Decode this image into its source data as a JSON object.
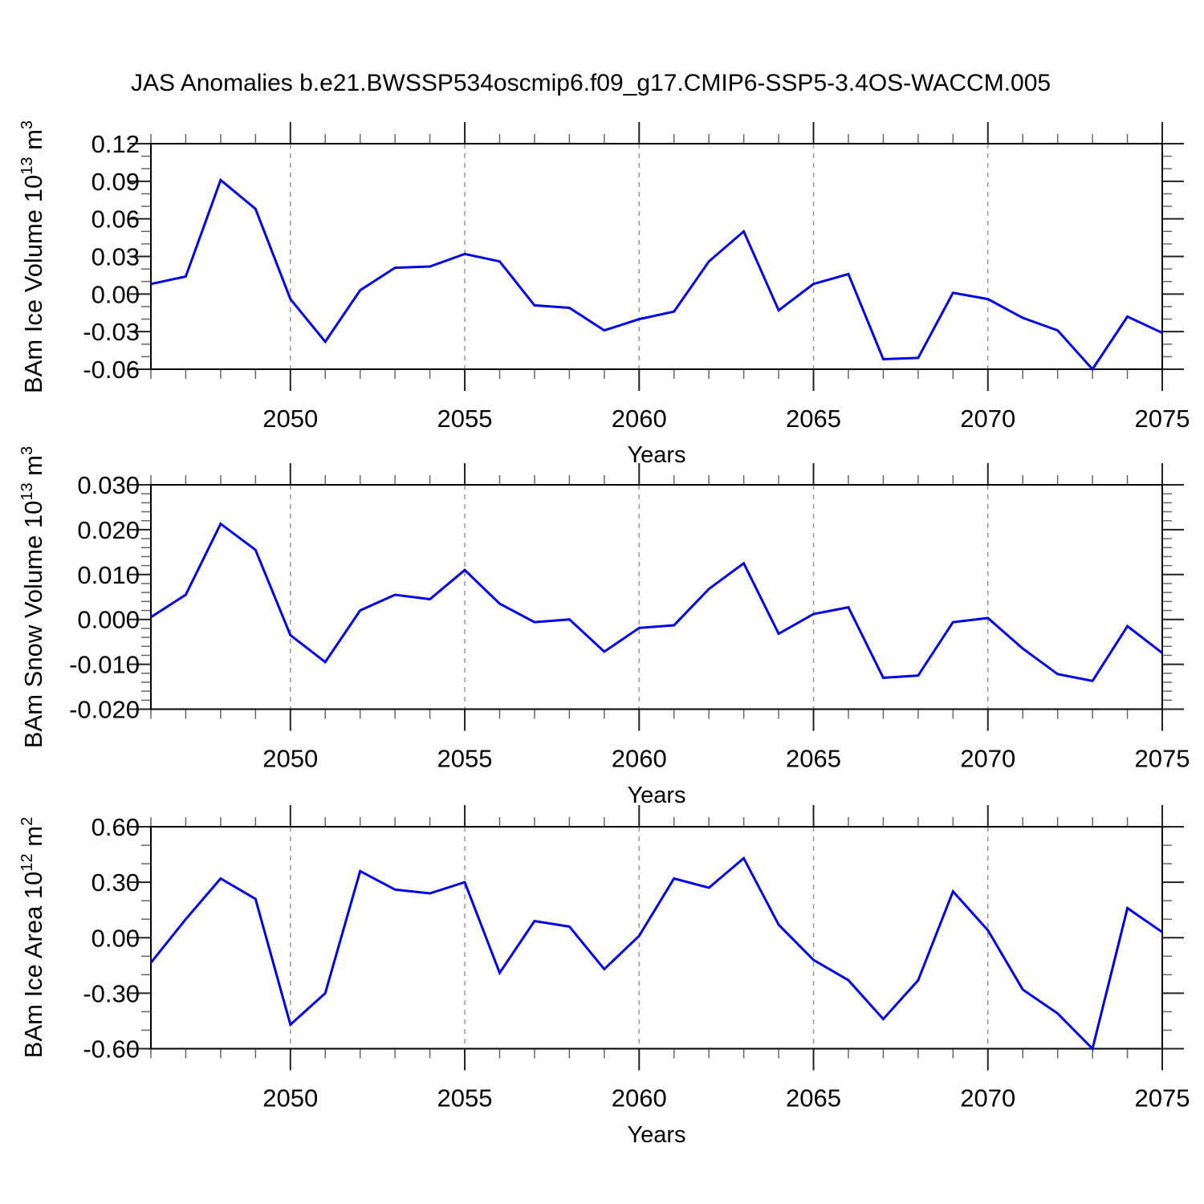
{
  "title": "JAS Anomalies b.e21.BWSSP534oscmip6.f09_g17.CMIP6-SSP5-3.4OS-WACCM.005",
  "xlabel": "Years",
  "colors": {
    "line": "#0000ee",
    "frame": "#000000",
    "grid": "#999999",
    "tick_major": "#222222",
    "tick_minor": "#666666"
  },
  "x_major_ticks": [
    2050,
    2055,
    2060,
    2065,
    2070,
    2075
  ],
  "x_major_tick_labels": [
    "2050",
    "2055",
    "2060",
    "2065",
    "2070",
    "2075"
  ],
  "grid_years": [
    2050,
    2055,
    2060,
    2065,
    2070
  ],
  "chart_data": [
    {
      "type": "line",
      "name": "bam-ice-volume",
      "ylabel_text": "BAm Ice Volume 10^13 m^3",
      "ylabel_parts": [
        {
          "t": "BAm Ice Volume 10"
        },
        {
          "t": "13",
          "sup": true
        },
        {
          "t": " m"
        },
        {
          "t": "3",
          "sup": true
        }
      ],
      "xlabel": "Years",
      "ylim": [
        -0.06,
        0.12
      ],
      "ymajor_step": 0.03,
      "yminor_step": 0.01,
      "ytick_labels": [
        "0.12",
        "0.09",
        "0.06",
        "0.03",
        "0.00",
        "-0.03",
        "-0.06"
      ],
      "x": [
        2046,
        2047,
        2048,
        2049,
        2050,
        2051,
        2052,
        2053,
        2054,
        2055,
        2056,
        2057,
        2058,
        2059,
        2060,
        2061,
        2062,
        2063,
        2064,
        2065,
        2066,
        2067,
        2068,
        2069,
        2070,
        2071,
        2072,
        2073,
        2074,
        2075
      ],
      "values": [
        0.008,
        0.014,
        0.091,
        0.068,
        -0.004,
        -0.038,
        0.003,
        0.021,
        0.022,
        0.032,
        0.026,
        -0.009,
        -0.011,
        -0.029,
        -0.02,
        -0.014,
        0.026,
        0.05,
        -0.013,
        0.008,
        0.016,
        -0.052,
        -0.051,
        0.001,
        -0.004,
        -0.019,
        -0.029,
        -0.06,
        -0.018,
        -0.031
      ]
    },
    {
      "type": "line",
      "name": "bam-snow-volume",
      "ylabel_text": "BAm Snow Volume 10^13 m^3",
      "ylabel_parts": [
        {
          "t": "BAm Snow Volume 10"
        },
        {
          "t": "13",
          "sup": true
        },
        {
          "t": " m"
        },
        {
          "t": "3",
          "sup": true
        }
      ],
      "xlabel": "Years",
      "ylim": [
        -0.02,
        0.03
      ],
      "ymajor_step": 0.01,
      "yminor_step": 0.002,
      "ytick_labels": [
        "0.030",
        "0.020",
        "0.010",
        "0.000",
        "-0.010",
        "-0.020"
      ],
      "x": [
        2046,
        2047,
        2048,
        2049,
        2050,
        2051,
        2052,
        2053,
        2054,
        2055,
        2056,
        2057,
        2058,
        2059,
        2060,
        2061,
        2062,
        2063,
        2064,
        2065,
        2066,
        2067,
        2068,
        2069,
        2070,
        2071,
        2072,
        2073,
        2074,
        2075
      ],
      "values": [
        0.0005,
        0.0055,
        0.0213,
        0.0155,
        -0.0035,
        -0.0095,
        0.002,
        0.0055,
        0.0045,
        0.011,
        0.0035,
        -0.0006,
        0.0,
        -0.0072,
        -0.0019,
        -0.0013,
        0.0068,
        0.0125,
        -0.0032,
        0.0012,
        0.0027,
        -0.013,
        -0.0125,
        -0.0006,
        0.0003,
        -0.0065,
        -0.0122,
        -0.0137,
        -0.0015,
        -0.0075
      ]
    },
    {
      "type": "line",
      "name": "bam-ice-area",
      "ylabel_text": "BAm Ice Area 10^12 m^2",
      "ylabel_parts": [
        {
          "t": "BAm Ice Area 10"
        },
        {
          "t": "12",
          "sup": true
        },
        {
          "t": " m"
        },
        {
          "t": "2",
          "sup": true
        }
      ],
      "xlabel": "Years",
      "ylim": [
        -0.6,
        0.6
      ],
      "ymajor_step": 0.3,
      "yminor_step": 0.1,
      "ytick_labels": [
        "0.60",
        "0.30",
        "0.00",
        "-0.30",
        "-0.60"
      ],
      "x": [
        2046,
        2047,
        2048,
        2049,
        2050,
        2051,
        2052,
        2053,
        2054,
        2055,
        2056,
        2057,
        2058,
        2059,
        2060,
        2061,
        2062,
        2063,
        2064,
        2065,
        2066,
        2067,
        2068,
        2069,
        2070,
        2071,
        2072,
        2073,
        2074,
        2075
      ],
      "values": [
        -0.135,
        0.1,
        0.32,
        0.21,
        -0.47,
        -0.3,
        0.36,
        0.26,
        0.24,
        0.3,
        -0.19,
        0.09,
        0.06,
        -0.17,
        0.01,
        0.32,
        0.27,
        0.43,
        0.07,
        -0.12,
        -0.23,
        -0.44,
        -0.23,
        0.25,
        0.04,
        -0.28,
        -0.41,
        -0.6,
        0.16,
        0.03
      ]
    }
  ]
}
